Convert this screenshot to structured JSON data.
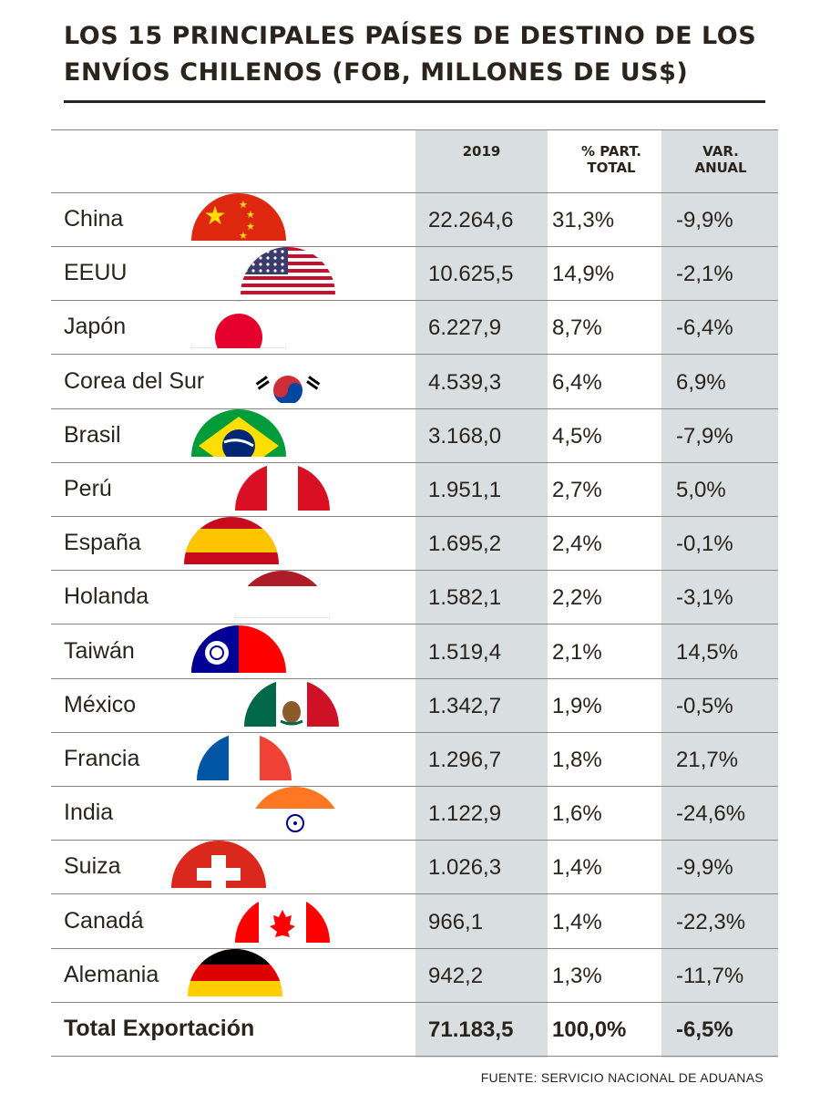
{
  "title": "LOS 15 PRINCIPALES PAÍSES DE DESTINO DE LOS ENVÍOS CHILENOS (FOB, MILLONES DE US$)",
  "headers": {
    "c1": "2019",
    "c2": "% PART. TOTAL",
    "c3": "VAR. ANUAL"
  },
  "chart_data": {
    "type": "table",
    "title": "LOS 15 PRINCIPALES PAÍSES DE DESTINO DE LOS ENVÍOS CHILENOS (FOB, MILLONES DE US$)",
    "columns": [
      "2019",
      "% PART. TOTAL",
      "VAR. ANUAL"
    ],
    "rows": [
      {
        "country": "China",
        "v2019": "22.264,6",
        "part": "31,3%",
        "var": "-9,9%",
        "flag": "flag-china-icon"
      },
      {
        "country": "EEUU",
        "v2019": "10.625,5",
        "part": "14,9%",
        "var": "-2,1%",
        "flag": "flag-usa-icon"
      },
      {
        "country": "Japón",
        "v2019": "6.227,9",
        "part": "8,7%",
        "var": "-6,4%",
        "flag": "flag-japan-icon"
      },
      {
        "country": "Corea del Sur",
        "v2019": "4.539,3",
        "part": "6,4%",
        "var": "6,9%",
        "flag": "flag-south-korea-icon"
      },
      {
        "country": "Brasil",
        "v2019": "3.168,0",
        "part": "4,5%",
        "var": "-7,9%",
        "flag": "flag-brazil-icon"
      },
      {
        "country": "Perú",
        "v2019": "1.951,1",
        "part": "2,7%",
        "var": "5,0%",
        "flag": "flag-peru-icon"
      },
      {
        "country": "España",
        "v2019": "1.695,2",
        "part": "2,4%",
        "var": "-0,1%",
        "flag": "flag-spain-icon"
      },
      {
        "country": "Holanda",
        "v2019": "1.582,1",
        "part": "2,2%",
        "var": "-3,1%",
        "flag": "flag-netherlands-icon"
      },
      {
        "country": "Taiwán",
        "v2019": "1.519,4",
        "part": "2,1%",
        "var": "14,5%",
        "flag": "flag-taiwan-icon"
      },
      {
        "country": "México",
        "v2019": "1.342,7",
        "part": "1,9%",
        "var": "-0,5%",
        "flag": "flag-mexico-icon"
      },
      {
        "country": "Francia",
        "v2019": "1.296,7",
        "part": "1,8%",
        "var": "21,7%",
        "flag": "flag-france-icon"
      },
      {
        "country": "India",
        "v2019": "1.122,9",
        "part": "1,6%",
        "var": "-24,6%",
        "flag": "flag-india-icon"
      },
      {
        "country": "Suiza",
        "v2019": "1.026,3",
        "part": "1,4%",
        "var": "-9,9%",
        "flag": "flag-switzerland-icon"
      },
      {
        "country": "Canadá",
        "v2019": "966,1",
        "part": "1,4%",
        "var": "-22,3%",
        "flag": "flag-canada-icon"
      },
      {
        "country": "Alemania",
        "v2019": "942,2",
        "part": "1,3%",
        "var": "-11,7%",
        "flag": "flag-germany-icon"
      }
    ],
    "total": {
      "label": "Total Exportación",
      "v2019": "71.183,5",
      "part": "100,0%",
      "var": "-6,5%"
    }
  },
  "source": "FUENTE: SERVICIO NACIONAL DE ADUANAS",
  "colors": {
    "shade": "#d9dfe1",
    "text": "#2a241d",
    "rule": "#8a8580"
  }
}
